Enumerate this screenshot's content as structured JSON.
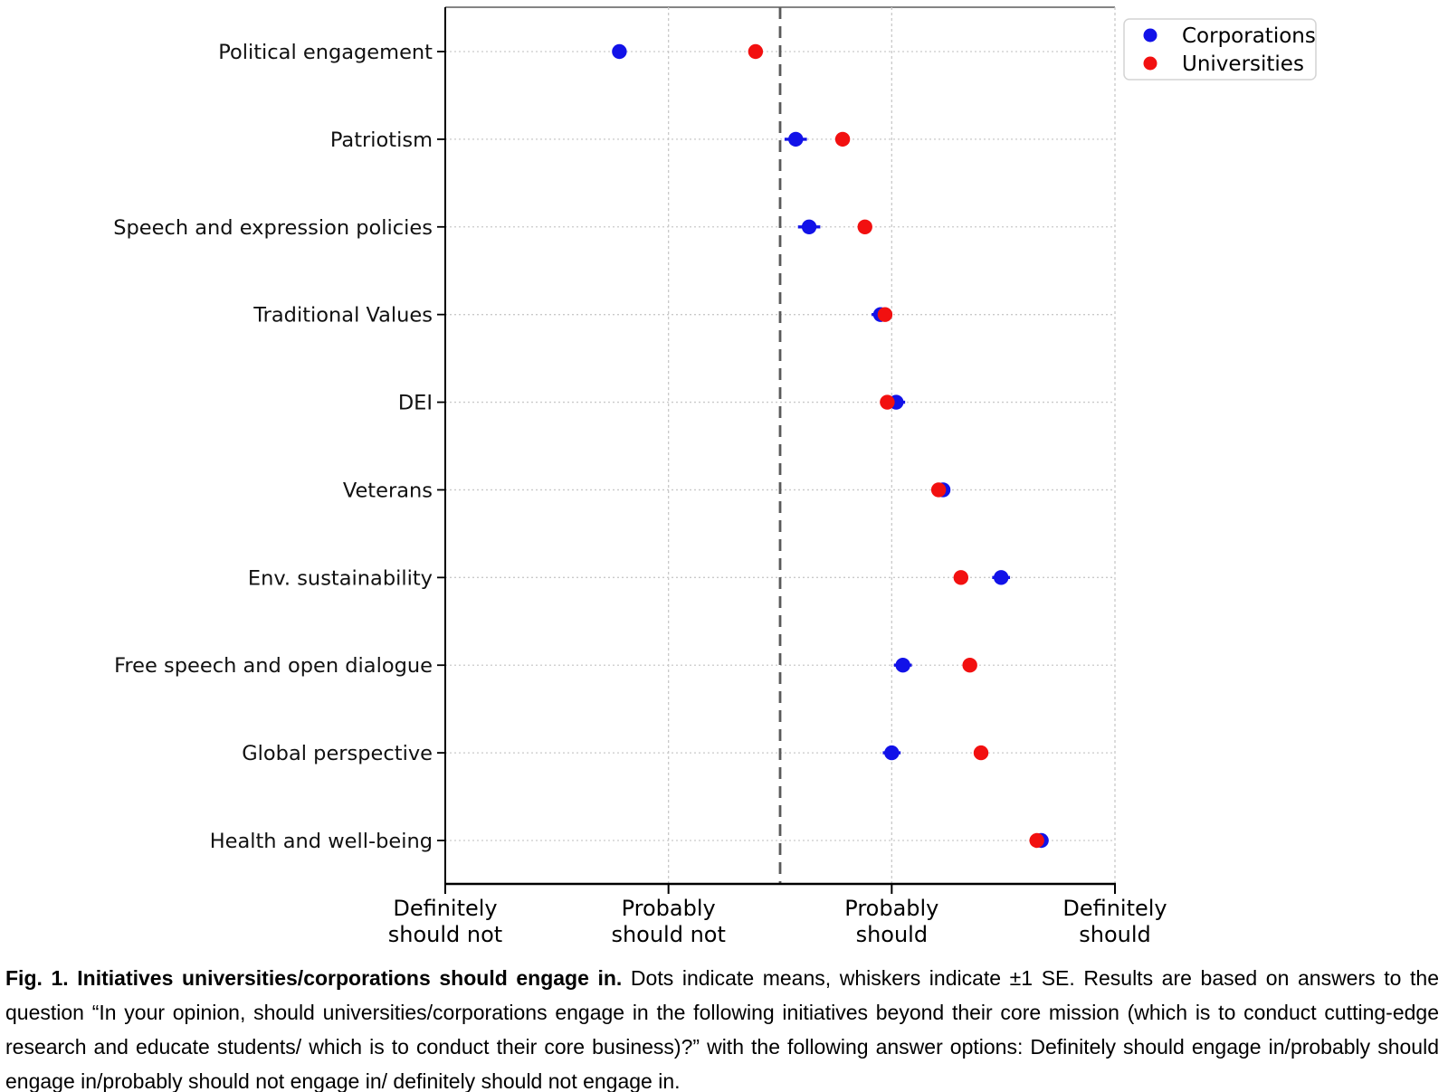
{
  "figure": {
    "caption_bold": "Fig. 1. Initiatives universities/corporations should engage in.",
    "caption_rest": " Dots indicate means, whiskers indicate ±1 SE. Results are based on answers to the question “In your opinion, should universities/corporations engage in the following initiatives beyond their core mission (which is to conduct cutting-edge research and educate students/ which is to conduct their core business)?” with the following answer options: Definitely should engage in/probably should engage in/probably should not engage in/ definitely should not engage in."
  },
  "chart_data": {
    "type": "scatter",
    "subtype": "horizontal-dot-plot-with-error-whiskers",
    "title": "",
    "xlabel": "",
    "ylabel": "",
    "categories": [
      "Political engagement",
      "Patriotism",
      "Speech and expression policies",
      "Traditional Values",
      "DEI",
      "Veterans",
      "Env. sustainability",
      "Free speech and open dialogue",
      "Global perspective",
      "Health and well-being"
    ],
    "x_axis": {
      "range": [
        1,
        4
      ],
      "tick_values": [
        1,
        2,
        3,
        4
      ],
      "tick_labels": [
        "Definitely\nshould not",
        "Probably\nshould not",
        "Probably\nshould",
        "Definitely\nshould"
      ],
      "reference_line_x": 2.5,
      "grid": true
    },
    "series": [
      {
        "name": "Corporations",
        "color": "#1212e8",
        "values": [
          1.78,
          2.57,
          2.63,
          2.95,
          3.02,
          3.23,
          3.49,
          3.05,
          3.0,
          3.67
        ],
        "se": [
          0.03,
          0.05,
          0.05,
          0.04,
          0.04,
          0.03,
          0.04,
          0.04,
          0.04,
          0.03
        ]
      },
      {
        "name": "Universities",
        "color": "#f21010",
        "values": [
          2.39,
          2.78,
          2.88,
          2.97,
          2.98,
          3.21,
          3.31,
          3.35,
          3.4,
          3.65
        ],
        "se": [
          0.02,
          0.02,
          0.02,
          0.02,
          0.02,
          0.02,
          0.02,
          0.02,
          0.02,
          0.02
        ]
      }
    ],
    "legend": {
      "position": "upper right",
      "entries": [
        "Corporations",
        "Universities"
      ]
    }
  }
}
